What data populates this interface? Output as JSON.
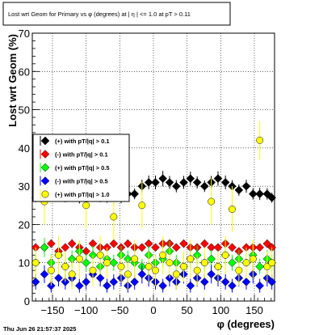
{
  "title": "Lost wrt Geom for Primary vs φ (degrees) at | η | <= 1.0 at pT > 0.11",
  "timestamp": "Thu Jun 26 21:57:37 2025",
  "colors": {
    "black": "#000000",
    "red": "#ff0000",
    "green": "#00ff00",
    "blue": "#0000ff",
    "yellow": "#ffff00"
  },
  "chart_data": {
    "type": "scatter",
    "title": "Lost wrt Geom for Primary vs φ (degrees) at | η | <= 1.0 at pT > 0.11",
    "xlabel": "φ (degrees)",
    "ylabel": "Lost wrt Geom (%)",
    "xlim": [
      -180,
      180
    ],
    "ylim": [
      0,
      70
    ],
    "xticks": [
      -150,
      -100,
      -50,
      0,
      50,
      100,
      150
    ],
    "yticks": [
      0,
      10,
      20,
      30,
      40,
      50,
      60,
      70
    ],
    "grid": true,
    "legend_position": "left",
    "series": [
      {
        "name": "(+) with pT/|q| > 0.1",
        "color": "#000000",
        "x": [
          -175,
          -162,
          -152,
          -141,
          -131,
          -121,
          -110,
          -100,
          -90,
          -79,
          -69,
          -59,
          -48,
          -38,
          -28,
          -17,
          -7,
          3,
          14,
          24,
          34,
          45,
          55,
          65,
          76,
          86,
          96,
          107,
          117,
          127,
          138,
          148,
          158,
          169,
          176
        ],
        "y": [
          27,
          28,
          28,
          28,
          27,
          28,
          27,
          27,
          28,
          27,
          27,
          27,
          27,
          28,
          28,
          30,
          31,
          31,
          32,
          31,
          30,
          31,
          32,
          31,
          30,
          31,
          32,
          31,
          30,
          29,
          30,
          28,
          28,
          28,
          27
        ],
        "err": [
          1.2,
          1.5,
          1.4,
          1.6,
          1.2,
          1.3,
          1.5,
          1.3,
          1.4,
          1.2,
          1.3,
          1.2,
          1.4,
          1.5,
          1.4,
          1.7,
          1.8,
          1.8,
          2.0,
          1.7,
          1.6,
          1.7,
          1.8,
          1.6,
          1.5,
          1.7,
          1.9,
          1.8,
          1.6,
          1.5,
          1.7,
          1.5,
          1.6,
          1.5,
          1.3
        ]
      },
      {
        "name": "(-) with pT/|q| > 0.1",
        "color": "#ff0000",
        "x": [
          -175,
          -162,
          -152,
          -141,
          -131,
          -121,
          -110,
          -100,
          -90,
          -79,
          -69,
          -59,
          -48,
          -38,
          -28,
          -17,
          -7,
          3,
          14,
          24,
          34,
          45,
          55,
          65,
          76,
          86,
          96,
          107,
          117,
          127,
          138,
          148,
          158,
          169,
          176
        ],
        "y": [
          14,
          14,
          15,
          13,
          14,
          15,
          14,
          13,
          15,
          14,
          14,
          15,
          14,
          15,
          14,
          14,
          15,
          14,
          15,
          15,
          14,
          15,
          14,
          14,
          15,
          14,
          14,
          15,
          14,
          13,
          14,
          14,
          14,
          15,
          14
        ],
        "err": [
          1.0,
          1.0,
          1.1,
          1.0,
          1.0,
          1.2,
          1.0,
          1.0,
          1.1,
          1.0,
          1.0,
          1.1,
          1.0,
          1.1,
          1.0,
          1.0,
          1.1,
          1.0,
          1.1,
          1.1,
          1.0,
          1.1,
          1.0,
          1.0,
          1.1,
          1.0,
          1.0,
          1.1,
          1.0,
          1.0,
          1.0,
          1.0,
          1.0,
          1.1,
          1.0
        ]
      },
      {
        "name": "(+) with pT/|q| > 0.5",
        "color": "#00ff00",
        "x": [
          -175,
          -162,
          -152,
          -141,
          -131,
          -121,
          -110,
          -100,
          -90,
          -79,
          -69,
          -59,
          -48,
          -38,
          -28,
          -17,
          -7,
          3,
          14,
          24,
          34,
          45,
          55,
          65,
          76,
          86,
          96,
          107,
          117,
          127,
          138,
          148,
          158,
          169,
          176
        ],
        "y": [
          10,
          14,
          10,
          12,
          9,
          11,
          13,
          10,
          12,
          9,
          11,
          10,
          12,
          11,
          10,
          9,
          12,
          10,
          11,
          13,
          10,
          9,
          11,
          12,
          10,
          11,
          9,
          12,
          10,
          11,
          10,
          12,
          9,
          11,
          10
        ],
        "err": [
          2.0,
          2.5,
          2.2,
          2.4,
          2.0,
          2.2,
          2.6,
          2.2,
          2.4,
          2.0,
          2.2,
          2.1,
          2.4,
          2.2,
          2.1,
          2.0,
          2.4,
          2.1,
          2.3,
          2.6,
          2.1,
          2.0,
          2.3,
          2.5,
          2.1,
          2.3,
          2.0,
          2.5,
          2.1,
          2.3,
          2.1,
          2.5,
          2.0,
          2.3,
          2.1
        ]
      },
      {
        "name": "(-) with pT/|q| > 0.5",
        "color": "#0000ff",
        "x": [
          -175,
          -162,
          -152,
          -141,
          -131,
          -121,
          -110,
          -100,
          -90,
          -79,
          -69,
          -59,
          -48,
          -38,
          -28,
          -17,
          -7,
          3,
          14,
          24,
          34,
          45,
          55,
          65,
          76,
          86,
          96,
          107,
          117,
          127,
          138,
          148,
          158,
          169,
          176
        ],
        "y": [
          5,
          7,
          4,
          6,
          5,
          6,
          4,
          5,
          7,
          6,
          4,
          5,
          6,
          4,
          5,
          7,
          6,
          5,
          4,
          6,
          5,
          7,
          4,
          6,
          5,
          7,
          6,
          5,
          4,
          6,
          5,
          7,
          4,
          6,
          5
        ],
        "err": [
          2.0,
          2.3,
          1.8,
          2.2,
          2.0,
          2.2,
          1.8,
          2.0,
          2.4,
          2.2,
          1.8,
          2.0,
          2.2,
          1.8,
          2.0,
          2.4,
          2.2,
          2.0,
          1.8,
          2.2,
          2.0,
          2.4,
          1.8,
          2.2,
          2.0,
          2.4,
          2.2,
          2.0,
          1.8,
          2.2,
          2.0,
          2.4,
          1.8,
          2.2,
          2.0
        ]
      },
      {
        "name": "(+) with pT/|q| > 1.0",
        "color": "#ffff00",
        "x": [
          -175,
          -162,
          -152,
          -141,
          -131,
          -121,
          -110,
          -100,
          -90,
          -79,
          -69,
          -59,
          -48,
          -38,
          -28,
          -17,
          -7,
          3,
          14,
          24,
          34,
          45,
          55,
          65,
          76,
          86,
          96,
          107,
          117,
          127,
          138,
          148,
          158,
          169,
          176
        ],
        "y": [
          10,
          26,
          8,
          12,
          9,
          7,
          11,
          25,
          8,
          12,
          10,
          22,
          9,
          7,
          11,
          25,
          9,
          8,
          12,
          10,
          7,
          9,
          11,
          8,
          10,
          26,
          9,
          12,
          24,
          8,
          10,
          11,
          42,
          9,
          10
        ],
        "err": [
          4,
          6,
          4,
          5,
          4,
          4,
          5,
          6,
          4,
          5,
          4,
          6,
          4,
          4,
          5,
          6,
          4,
          4,
          5,
          4,
          4,
          4,
          5,
          4,
          4,
          6,
          4,
          5,
          6,
          4,
          4,
          5,
          5,
          4,
          4
        ]
      }
    ]
  }
}
